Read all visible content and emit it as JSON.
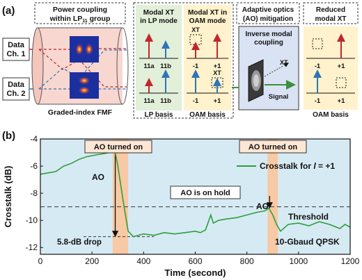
{
  "panel_a": {
    "panel_label": "(a)",
    "box_power": {
      "line1": "Power coupling",
      "line2": "within LP",
      "sub": "11",
      "line2_tail": " group"
    },
    "data_ch1": {
      "line1": "Data",
      "line2": "Ch. 1"
    },
    "data_ch2": {
      "line1": "Data",
      "line2": "Ch. 2"
    },
    "fiber_label": "Graded-index FMF",
    "box_lp": {
      "line1": "Modal XT",
      "line2": "in LP mode",
      "ticks_top": [
        "11a",
        "11b"
      ],
      "ticks_bot": [
        "11a",
        "11b"
      ],
      "basis": "LP basis"
    },
    "box_oam": {
      "line1": "Modal XT in",
      "line2": "OAM mode",
      "xt": "XT",
      "ticks": [
        "-1",
        "+1"
      ],
      "basis": "OAM basis"
    },
    "box_ao": {
      "line1": "Adaptive optics",
      "line2": "(AO) mitigation",
      "inverse1": "Inverse modal",
      "inverse2": "coupling",
      "xt": "XT",
      "signal": "Signal"
    },
    "box_reduced": {
      "line1": "Reduced",
      "line2": "modal XT",
      "ticks": [
        "-1",
        "+1"
      ],
      "basis": "OAM basis"
    },
    "colors": {
      "red": "#c0272d",
      "blue": "#2e75b6",
      "green_bg": "#e2efd9",
      "yellow_bg": "#fff2cc",
      "pink_bg": "#f8d7d0",
      "ao_bg": "#dae3f3"
    }
  },
  "panel_b": {
    "panel_label": "(b)",
    "annot_ao_on_1": "AO turned on",
    "annot_ao_on_2": "AO turned on",
    "annot_ao_1": "AO",
    "annot_ao_2": "AO",
    "annot_hold": "AO is on hold",
    "annot_threshold": "Threshold",
    "annot_drop": "5.8-dB drop",
    "annot_format": "10-Gbaud QPSK",
    "legend_prefix": "Crosstalk for ",
    "legend_var": "l",
    "legend_suffix": " = +1"
  },
  "chart_data": {
    "type": "line",
    "xlabel": "Time (second)",
    "ylabel": "Crosstalk (dB)",
    "xlim": [
      0,
      1200
    ],
    "ylim": [
      -12.5,
      -4
    ],
    "xticks": [
      0,
      200,
      400,
      600,
      800,
      1000,
      1200
    ],
    "yticks": [
      -4,
      -6,
      -8,
      -10,
      -12
    ],
    "threshold": -9,
    "ao_on_intervals": [
      [
        280,
        340
      ],
      [
        880,
        920
      ]
    ],
    "series": [
      {
        "name": "Crosstalk for l = +1",
        "color": "#2e9e3a",
        "x": [
          0,
          30,
          60,
          90,
          120,
          150,
          180,
          210,
          240,
          270,
          290,
          300,
          320,
          340,
          360,
          400,
          440,
          480,
          520,
          560,
          600,
          620,
          640,
          660,
          670,
          690,
          720,
          760,
          800,
          840,
          870,
          885,
          900,
          915,
          930,
          960,
          1000,
          1040,
          1080,
          1120,
          1160,
          1180,
          1200
        ],
        "y": [
          -6.6,
          -6.5,
          -6.4,
          -6.0,
          -5.8,
          -5.5,
          -5.3,
          -5.2,
          -5.1,
          -5.0,
          -5.0,
          -6.0,
          -8.5,
          -10.8,
          -11.2,
          -11.0,
          -11.1,
          -10.9,
          -11.0,
          -10.9,
          -10.8,
          -10.9,
          -10.7,
          -9.6,
          -10.2,
          -10.0,
          -9.9,
          -9.8,
          -9.6,
          -9.4,
          -9.3,
          -9.1,
          -9.6,
          -10.3,
          -10.8,
          -10.3,
          -10.2,
          -10.4,
          -10.1,
          -10.3,
          -10.6,
          -10.3,
          -10.5
        ]
      }
    ]
  }
}
